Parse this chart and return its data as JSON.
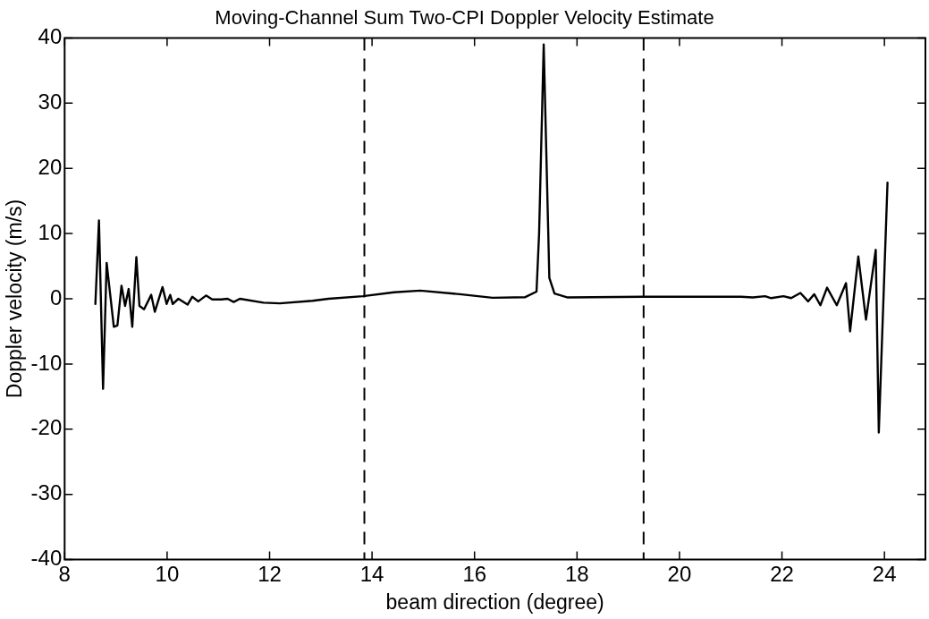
{
  "chart_data": {
    "type": "line",
    "title": "Moving-Channel Sum Two-CPI Doppler Velocity Estimate",
    "xlabel": "beam direction (degree)",
    "ylabel": "Doppler velocity (m/s)",
    "xlim": [
      8,
      24.8
    ],
    "xticks": [
      8,
      10,
      12,
      14,
      16,
      18,
      20,
      22,
      24
    ],
    "ylim": [
      -40,
      40
    ],
    "yticks": [
      -40,
      -30,
      -20,
      -10,
      0,
      10,
      20,
      30,
      40
    ],
    "grid": false,
    "legend": false,
    "marker": "none",
    "line_style": "solid",
    "ref_lines": [
      {
        "axis": "x",
        "value": 13.85,
        "line_style": "dashed",
        "color": "#000000"
      },
      {
        "axis": "x",
        "value": 19.3,
        "line_style": "dashed",
        "color": "#000000"
      }
    ],
    "series": [
      {
        "color": "#000000",
        "x": [
          8.6,
          8.67,
          8.75,
          8.82,
          8.96,
          9.03,
          9.11,
          9.18,
          9.25,
          9.32,
          9.4,
          9.46,
          9.55,
          9.69,
          9.76,
          9.91,
          9.99,
          10.06,
          10.11,
          10.22,
          10.4,
          10.49,
          10.61,
          10.76,
          10.88,
          11.06,
          11.18,
          11.3,
          11.42,
          11.88,
          12.2,
          12.84,
          13.15,
          13.82,
          14.43,
          14.94,
          15.71,
          16.35,
          16.99,
          17.21,
          17.26,
          17.35,
          17.46,
          17.56,
          17.82,
          19.29,
          21.2,
          21.43,
          21.67,
          21.79,
          22.03,
          22.18,
          22.36,
          22.51,
          22.63,
          22.75,
          22.88,
          23.07,
          23.25,
          23.33,
          23.49,
          23.64,
          23.83,
          23.89,
          24.06
        ],
        "values": [
          -0.8,
          12,
          -13.8,
          5.5,
          -4.3,
          -4.1,
          2,
          -1.1,
          1.5,
          -4.3,
          6.4,
          -1.1,
          -1.6,
          0.6,
          -2,
          1.8,
          -0.8,
          0.6,
          -0.8,
          0,
          -0.9,
          0.3,
          -0.4,
          0.5,
          -0.1,
          -0.1,
          0,
          -0.5,
          0,
          -0.6,
          -0.7,
          -0.3,
          0,
          0.4,
          1,
          1.25,
          0.7,
          0.15,
          0.25,
          1.1,
          10,
          39,
          3.2,
          0.8,
          0.2,
          0.3,
          0.3,
          0.2,
          0.4,
          0.1,
          0.4,
          0.1,
          0.9,
          -0.4,
          0.7,
          -1,
          1.7,
          -1,
          2.4,
          -5,
          6.5,
          -3.2,
          7.5,
          -20.5,
          17.8
        ]
      }
    ]
  }
}
